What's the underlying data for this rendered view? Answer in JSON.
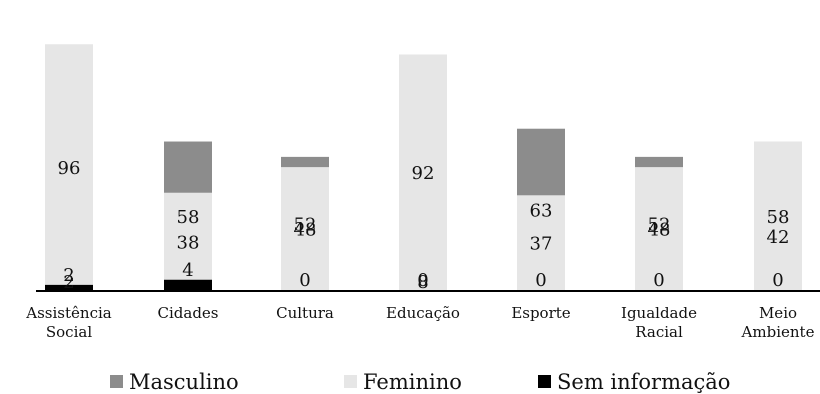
{
  "chart_data": {
    "type": "bar",
    "stacked": true,
    "percent": true,
    "title": "",
    "xlabel": "",
    "ylabel": "",
    "ylim": [
      0,
      100
    ],
    "grid": false,
    "legend_position": "bottom",
    "categories": [
      [
        "Assistência",
        "Social"
      ],
      [
        "Cidades"
      ],
      [
        "Cultura"
      ],
      [
        "Educação"
      ],
      [
        "Esporte"
      ],
      [
        "Igualdade",
        "Racial"
      ],
      [
        "Meio",
        "Ambiente"
      ]
    ],
    "series": [
      {
        "name": "Masculino",
        "color": "#8c8c8c",
        "values": [
          2,
          58,
          52,
          8,
          63,
          52,
          42
        ]
      },
      {
        "name": "Feminino",
        "color": "#e6e6e6",
        "values": [
          96,
          38,
          48,
          92,
          37,
          48,
          58
        ]
      },
      {
        "name": "Sem informação",
        "color": "#000000",
        "values": [
          2,
          4,
          0,
          0,
          0,
          0,
          0
        ]
      }
    ]
  }
}
